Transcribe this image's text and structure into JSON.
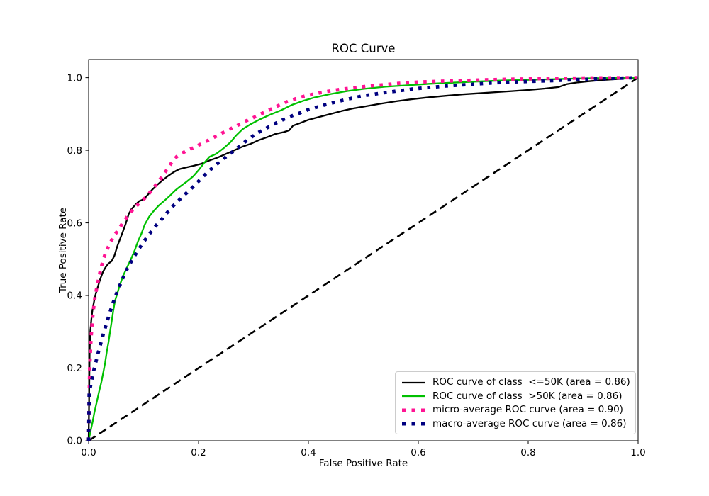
{
  "chart_data": {
    "type": "line",
    "title": "ROC Curve",
    "xlabel": "False Positive Rate",
    "ylabel": "True Positive Rate",
    "xlim": [
      0.0,
      1.0
    ],
    "ylim": [
      0.0,
      1.05
    ],
    "x_ticks": [
      0.0,
      0.2,
      0.4,
      0.6,
      0.8,
      1.0
    ],
    "y_ticks": [
      0.0,
      0.2,
      0.4,
      0.6,
      0.8,
      1.0
    ],
    "x_tick_labels": [
      "0.0",
      "0.2",
      "0.4",
      "0.6",
      "0.8",
      "1.0"
    ],
    "y_tick_labels": [
      "0.0",
      "0.2",
      "0.4",
      "0.6",
      "0.8",
      "1.0"
    ],
    "grid": false,
    "legend_position": "lower right",
    "series": [
      {
        "name": "ROC curve of class  <=50K (area = 0.86)",
        "color": "#000000",
        "style": "solid",
        "width": 2.3,
        "points": [
          [
            0,
            0
          ],
          [
            0.002,
            0.25
          ],
          [
            0.003,
            0.3
          ],
          [
            0.005,
            0.335
          ],
          [
            0.007,
            0.36
          ],
          [
            0.01,
            0.385
          ],
          [
            0.013,
            0.405
          ],
          [
            0.017,
            0.425
          ],
          [
            0.021,
            0.445
          ],
          [
            0.026,
            0.465
          ],
          [
            0.031,
            0.478
          ],
          [
            0.036,
            0.488
          ],
          [
            0.042,
            0.495
          ],
          [
            0.047,
            0.51
          ],
          [
            0.052,
            0.535
          ],
          [
            0.057,
            0.555
          ],
          [
            0.062,
            0.575
          ],
          [
            0.068,
            0.6
          ],
          [
            0.073,
            0.625
          ],
          [
            0.078,
            0.638
          ],
          [
            0.085,
            0.65
          ],
          [
            0.092,
            0.66
          ],
          [
            0.1,
            0.665
          ],
          [
            0.108,
            0.678
          ],
          [
            0.116,
            0.692
          ],
          [
            0.125,
            0.705
          ],
          [
            0.135,
            0.718
          ],
          [
            0.145,
            0.73
          ],
          [
            0.155,
            0.74
          ],
          [
            0.165,
            0.748
          ],
          [
            0.175,
            0.752
          ],
          [
            0.19,
            0.757
          ],
          [
            0.205,
            0.763
          ],
          [
            0.22,
            0.772
          ],
          [
            0.235,
            0.78
          ],
          [
            0.25,
            0.79
          ],
          [
            0.265,
            0.8
          ],
          [
            0.28,
            0.81
          ],
          [
            0.295,
            0.818
          ],
          [
            0.31,
            0.828
          ],
          [
            0.325,
            0.836
          ],
          [
            0.34,
            0.845
          ],
          [
            0.355,
            0.85
          ],
          [
            0.365,
            0.855
          ],
          [
            0.372,
            0.868
          ],
          [
            0.385,
            0.875
          ],
          [
            0.4,
            0.884
          ],
          [
            0.42,
            0.892
          ],
          [
            0.44,
            0.9
          ],
          [
            0.46,
            0.908
          ],
          [
            0.48,
            0.915
          ],
          [
            0.5,
            0.92
          ],
          [
            0.53,
            0.928
          ],
          [
            0.56,
            0.935
          ],
          [
            0.59,
            0.941
          ],
          [
            0.62,
            0.946
          ],
          [
            0.65,
            0.95
          ],
          [
            0.68,
            0.954
          ],
          [
            0.71,
            0.957
          ],
          [
            0.74,
            0.96
          ],
          [
            0.77,
            0.963
          ],
          [
            0.8,
            0.966
          ],
          [
            0.83,
            0.97
          ],
          [
            0.855,
            0.974
          ],
          [
            0.87,
            0.982
          ],
          [
            0.89,
            0.987
          ],
          [
            0.91,
            0.99
          ],
          [
            0.94,
            0.994
          ],
          [
            0.97,
            0.997
          ],
          [
            1.0,
            1.0
          ]
        ]
      },
      {
        "name": "ROC curve of class  >50K (area = 0.86)",
        "color": "#00c000",
        "style": "solid",
        "width": 2.3,
        "points": [
          [
            0,
            0
          ],
          [
            0.004,
            0.03
          ],
          [
            0.007,
            0.05
          ],
          [
            0.01,
            0.075
          ],
          [
            0.013,
            0.095
          ],
          [
            0.016,
            0.115
          ],
          [
            0.019,
            0.135
          ],
          [
            0.023,
            0.16
          ],
          [
            0.027,
            0.19
          ],
          [
            0.03,
            0.215
          ],
          [
            0.033,
            0.245
          ],
          [
            0.036,
            0.27
          ],
          [
            0.039,
            0.3
          ],
          [
            0.042,
            0.33
          ],
          [
            0.045,
            0.36
          ],
          [
            0.048,
            0.385
          ],
          [
            0.052,
            0.405
          ],
          [
            0.057,
            0.43
          ],
          [
            0.063,
            0.455
          ],
          [
            0.07,
            0.478
          ],
          [
            0.077,
            0.5
          ],
          [
            0.084,
            0.525
          ],
          [
            0.09,
            0.55
          ],
          [
            0.096,
            0.57
          ],
          [
            0.102,
            0.595
          ],
          [
            0.11,
            0.617
          ],
          [
            0.118,
            0.632
          ],
          [
            0.127,
            0.647
          ],
          [
            0.137,
            0.66
          ],
          [
            0.148,
            0.675
          ],
          [
            0.158,
            0.69
          ],
          [
            0.168,
            0.702
          ],
          [
            0.178,
            0.713
          ],
          [
            0.19,
            0.728
          ],
          [
            0.2,
            0.745
          ],
          [
            0.21,
            0.765
          ],
          [
            0.22,
            0.782
          ],
          [
            0.232,
            0.79
          ],
          [
            0.246,
            0.806
          ],
          [
            0.258,
            0.822
          ],
          [
            0.268,
            0.84
          ],
          [
            0.28,
            0.858
          ],
          [
            0.295,
            0.872
          ],
          [
            0.31,
            0.884
          ],
          [
            0.33,
            0.898
          ],
          [
            0.35,
            0.91
          ],
          [
            0.37,
            0.925
          ],
          [
            0.39,
            0.936
          ],
          [
            0.41,
            0.945
          ],
          [
            0.44,
            0.955
          ],
          [
            0.47,
            0.963
          ],
          [
            0.5,
            0.969
          ],
          [
            0.54,
            0.975
          ],
          [
            0.58,
            0.979
          ],
          [
            0.62,
            0.983
          ],
          [
            0.66,
            0.986
          ],
          [
            0.7,
            0.989
          ],
          [
            0.75,
            0.992
          ],
          [
            0.8,
            0.994
          ],
          [
            0.85,
            0.996
          ],
          [
            0.9,
            0.998
          ],
          [
            0.95,
            0.999
          ],
          [
            1.0,
            1.0
          ]
        ]
      },
      {
        "name": "micro-average ROC curve (area = 0.90)",
        "color": "#ff1493",
        "style": "dotted",
        "width": 4.8,
        "points": [
          [
            0,
            0
          ],
          [
            0.001,
            0.12
          ],
          [
            0.002,
            0.2
          ],
          [
            0.004,
            0.27
          ],
          [
            0.006,
            0.32
          ],
          [
            0.009,
            0.365
          ],
          [
            0.012,
            0.4
          ],
          [
            0.016,
            0.43
          ],
          [
            0.02,
            0.46
          ],
          [
            0.025,
            0.49
          ],
          [
            0.03,
            0.515
          ],
          [
            0.036,
            0.535
          ],
          [
            0.042,
            0.553
          ],
          [
            0.048,
            0.568
          ],
          [
            0.055,
            0.583
          ],
          [
            0.062,
            0.6
          ],
          [
            0.07,
            0.617
          ],
          [
            0.078,
            0.632
          ],
          [
            0.086,
            0.645
          ],
          [
            0.095,
            0.658
          ],
          [
            0.105,
            0.672
          ],
          [
            0.115,
            0.69
          ],
          [
            0.125,
            0.71
          ],
          [
            0.135,
            0.73
          ],
          [
            0.145,
            0.752
          ],
          [
            0.152,
            0.768
          ],
          [
            0.16,
            0.782
          ],
          [
            0.17,
            0.792
          ],
          [
            0.18,
            0.8
          ],
          [
            0.195,
            0.81
          ],
          [
            0.21,
            0.822
          ],
          [
            0.225,
            0.833
          ],
          [
            0.24,
            0.845
          ],
          [
            0.255,
            0.857
          ],
          [
            0.27,
            0.868
          ],
          [
            0.285,
            0.88
          ],
          [
            0.3,
            0.89
          ],
          [
            0.315,
            0.901
          ],
          [
            0.33,
            0.912
          ],
          [
            0.345,
            0.923
          ],
          [
            0.36,
            0.933
          ],
          [
            0.375,
            0.941
          ],
          [
            0.39,
            0.948
          ],
          [
            0.41,
            0.955
          ],
          [
            0.43,
            0.961
          ],
          [
            0.455,
            0.967
          ],
          [
            0.48,
            0.972
          ],
          [
            0.51,
            0.977
          ],
          [
            0.54,
            0.981
          ],
          [
            0.57,
            0.985
          ],
          [
            0.6,
            0.988
          ],
          [
            0.64,
            0.99
          ],
          [
            0.68,
            0.992
          ],
          [
            0.72,
            0.994
          ],
          [
            0.76,
            0.9955
          ],
          [
            0.8,
            0.9965
          ],
          [
            0.85,
            0.998
          ],
          [
            0.9,
            0.999
          ],
          [
            1.0,
            1.0
          ]
        ]
      },
      {
        "name": "macro-average ROC curve (area = 0.86)",
        "color": "#000080",
        "style": "dotted",
        "width": 4.8,
        "points": [
          [
            0,
            0
          ],
          [
            0.001,
            0.13
          ],
          [
            0.004,
            0.155
          ],
          [
            0.008,
            0.185
          ],
          [
            0.012,
            0.21
          ],
          [
            0.017,
            0.24
          ],
          [
            0.022,
            0.268
          ],
          [
            0.027,
            0.295
          ],
          [
            0.032,
            0.32
          ],
          [
            0.038,
            0.35
          ],
          [
            0.044,
            0.378
          ],
          [
            0.05,
            0.403
          ],
          [
            0.056,
            0.425
          ],
          [
            0.062,
            0.447
          ],
          [
            0.068,
            0.467
          ],
          [
            0.075,
            0.487
          ],
          [
            0.082,
            0.505
          ],
          [
            0.09,
            0.525
          ],
          [
            0.098,
            0.543
          ],
          [
            0.106,
            0.56
          ],
          [
            0.115,
            0.578
          ],
          [
            0.124,
            0.595
          ],
          [
            0.134,
            0.612
          ],
          [
            0.144,
            0.63
          ],
          [
            0.154,
            0.647
          ],
          [
            0.164,
            0.662
          ],
          [
            0.175,
            0.678
          ],
          [
            0.186,
            0.693
          ],
          [
            0.197,
            0.71
          ],
          [
            0.208,
            0.727
          ],
          [
            0.219,
            0.743
          ],
          [
            0.23,
            0.758
          ],
          [
            0.242,
            0.772
          ],
          [
            0.254,
            0.787
          ],
          [
            0.266,
            0.8
          ],
          [
            0.28,
            0.818
          ],
          [
            0.295,
            0.835
          ],
          [
            0.31,
            0.85
          ],
          [
            0.325,
            0.862
          ],
          [
            0.34,
            0.874
          ],
          [
            0.355,
            0.885
          ],
          [
            0.37,
            0.895
          ],
          [
            0.385,
            0.903
          ],
          [
            0.4,
            0.912
          ],
          [
            0.425,
            0.923
          ],
          [
            0.45,
            0.933
          ],
          [
            0.475,
            0.942
          ],
          [
            0.5,
            0.95
          ],
          [
            0.53,
            0.957
          ],
          [
            0.56,
            0.963
          ],
          [
            0.59,
            0.969
          ],
          [
            0.62,
            0.973
          ],
          [
            0.65,
            0.977
          ],
          [
            0.69,
            0.981
          ],
          [
            0.73,
            0.985
          ],
          [
            0.77,
            0.988
          ],
          [
            0.81,
            0.99
          ],
          [
            0.85,
            0.992
          ],
          [
            0.89,
            0.995
          ],
          [
            0.93,
            0.997
          ],
          [
            1.0,
            1.0
          ]
        ]
      }
    ],
    "reference_line": {
      "name": "chance-diagonal",
      "color": "#000000",
      "style": "dashed",
      "width": 2.6,
      "points": [
        [
          0,
          0
        ],
        [
          1,
          1
        ]
      ]
    }
  }
}
